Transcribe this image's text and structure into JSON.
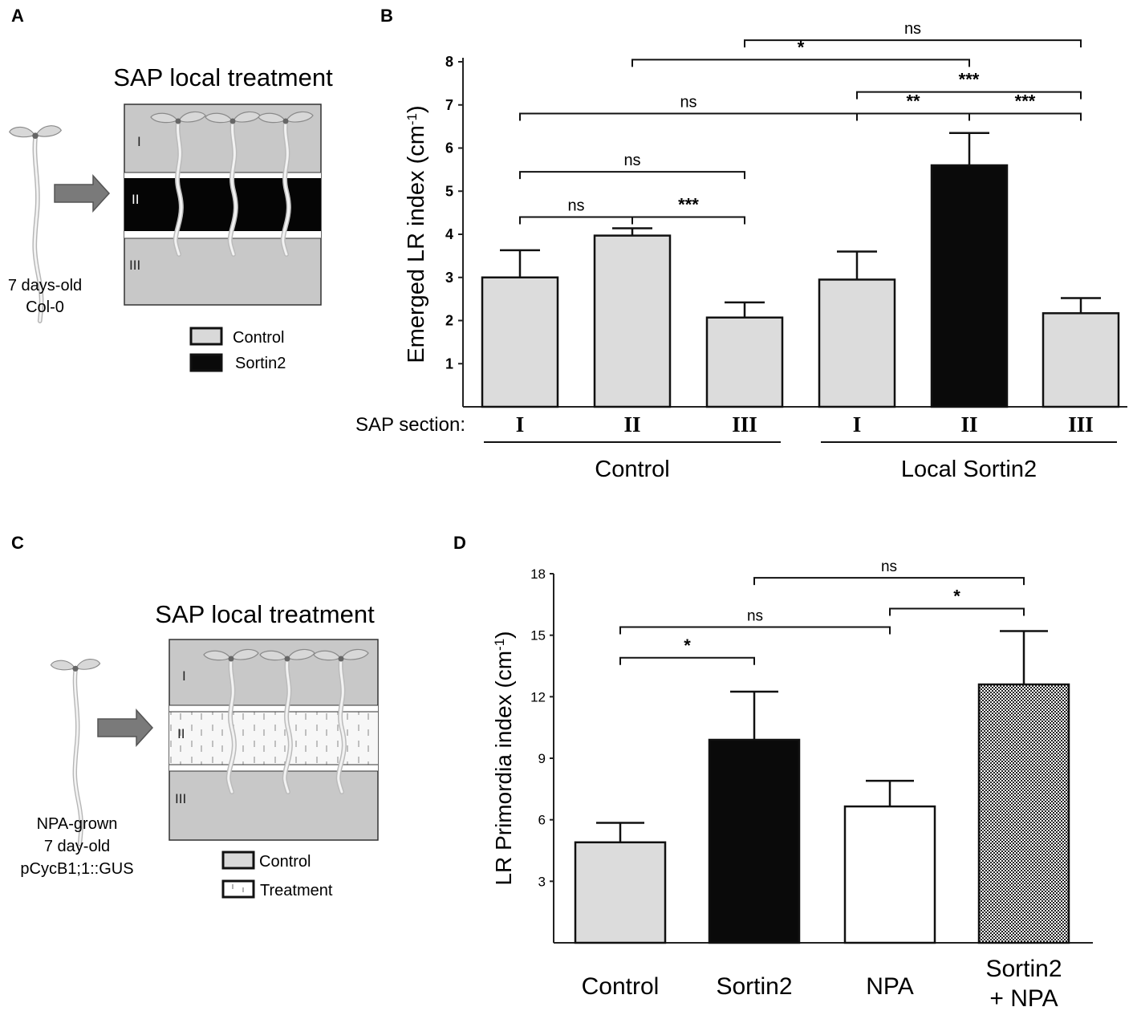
{
  "panels": {
    "A": {
      "letter": "A",
      "title": "SAP local treatment",
      "seedling_label": [
        "7 days-old",
        "Col-0"
      ],
      "sections": [
        "I",
        "II",
        "III"
      ],
      "legend": [
        {
          "label": "Control",
          "color": "#d9d9d9"
        },
        {
          "label": "Sortin2",
          "color": "#0a0a0a"
        }
      ]
    },
    "B": {
      "letter": "B"
    },
    "C": {
      "letter": "C",
      "title": "SAP local treatment",
      "seedling_label": [
        "NPA-grown",
        "7 day-old",
        "pCycB1;1::GUS"
      ],
      "sections": [
        "I",
        "II",
        "III"
      ],
      "legend": [
        {
          "label": "Control",
          "color": "#d9d9d9"
        },
        {
          "label": "Treatment",
          "color": "#ffffff"
        }
      ]
    },
    "D": {
      "letter": "D"
    }
  },
  "chart_data": [
    {
      "id": "B",
      "type": "bar",
      "ylabel": "Emerged LR index (cm-1)",
      "ylabel_main": "Emerged LR index (cm",
      "ylabel_sup": "-1",
      "ylabel_close": ")",
      "ylim": [
        0,
        8
      ],
      "yticks": [
        1,
        2,
        3,
        4,
        5,
        6,
        7,
        8
      ],
      "section_prefix": "SAP section:",
      "categories": [
        "I",
        "II",
        "III",
        "I",
        "II",
        "III"
      ],
      "groups": [
        {
          "label": "Control",
          "from": 0,
          "to": 2
        },
        {
          "label": "Local Sortin2",
          "from": 3,
          "to": 5
        }
      ],
      "values": [
        3.0,
        3.97,
        2.07,
        2.95,
        5.6,
        2.17
      ],
      "errors": [
        0.63,
        0.17,
        0.35,
        0.65,
        0.75,
        0.35
      ],
      "bar_colors": [
        "#dcdcdc",
        "#dcdcdc",
        "#dcdcdc",
        "#dcdcdc",
        "#0a0a0a",
        "#dcdcdc"
      ],
      "significance": [
        {
          "from": 0,
          "to": 1,
          "level": 4.4,
          "label": "ns"
        },
        {
          "from": 1,
          "to": 2,
          "level": 4.4,
          "label": "***"
        },
        {
          "from": 0,
          "to": 2,
          "level": 5.45,
          "label": "ns"
        },
        {
          "from": 0,
          "to": 3,
          "level": 6.8,
          "label": "ns"
        },
        {
          "from": 3,
          "to": 4,
          "level": 6.8,
          "label": "**"
        },
        {
          "from": 4,
          "to": 5,
          "level": 6.8,
          "label": "***"
        },
        {
          "from": 3,
          "to": 5,
          "level": 7.3,
          "label": "***"
        },
        {
          "from": 1,
          "to": 4,
          "level": 8.05,
          "label": "*"
        },
        {
          "from": 2,
          "to": 5,
          "level": 8.5,
          "label": "ns"
        }
      ]
    },
    {
      "id": "D",
      "type": "bar",
      "ylabel": "LR Primordia index (cm-1)",
      "ylabel_main": "LR Primordia index (cm",
      "ylabel_sup": "-1",
      "ylabel_close": ")",
      "ylim": [
        0,
        18
      ],
      "yticks": [
        3,
        6,
        9,
        12,
        15,
        18
      ],
      "categories": [
        [
          "Control"
        ],
        [
          "Sortin2"
        ],
        [
          "NPA"
        ],
        [
          "Sortin2",
          "+ NPA"
        ]
      ],
      "values": [
        4.9,
        9.9,
        6.65,
        12.6
      ],
      "errors": [
        0.95,
        2.35,
        1.25,
        2.6
      ],
      "bar_fills": [
        "#dcdcdc",
        "#0a0a0a",
        "#ffffff",
        "checker"
      ],
      "significance": [
        {
          "from": 0,
          "to": 1,
          "level": 13.9,
          "label": "*"
        },
        {
          "from": 0,
          "to": 2,
          "level": 15.4,
          "label": "ns"
        },
        {
          "from": 2,
          "to": 3,
          "level": 16.3,
          "label": "*"
        },
        {
          "from": 1,
          "to": 3,
          "level": 17.8,
          "label": "ns"
        }
      ]
    }
  ]
}
